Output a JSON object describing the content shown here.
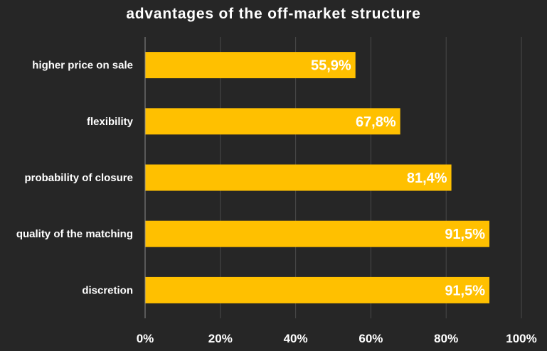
{
  "chart_data": {
    "type": "bar",
    "orientation": "horizontal",
    "title": "advantages of the off-market structure",
    "categories": [
      "higher price on sale",
      "flexibility",
      "probability of closure",
      "quality of the matching",
      "discretion"
    ],
    "values": [
      55.9,
      67.8,
      81.4,
      91.5,
      91.5
    ],
    "value_labels": [
      "55,9%",
      "67,8%",
      "81,4%",
      "91,5%",
      "91,5%"
    ],
    "xlim": [
      0,
      100
    ],
    "ticks": [
      0,
      20,
      40,
      60,
      80,
      100
    ],
    "tick_labels": [
      "0%",
      "20%",
      "40%",
      "60%",
      "80%",
      "100%"
    ],
    "grid": true,
    "legend": "none",
    "xlabel": "",
    "ylabel": ""
  },
  "colors": {
    "background": "#262626",
    "bar": "#FFC000",
    "gridline": "#4a4a4a",
    "axis": "#8c8c8c",
    "text": "#ffffff"
  }
}
